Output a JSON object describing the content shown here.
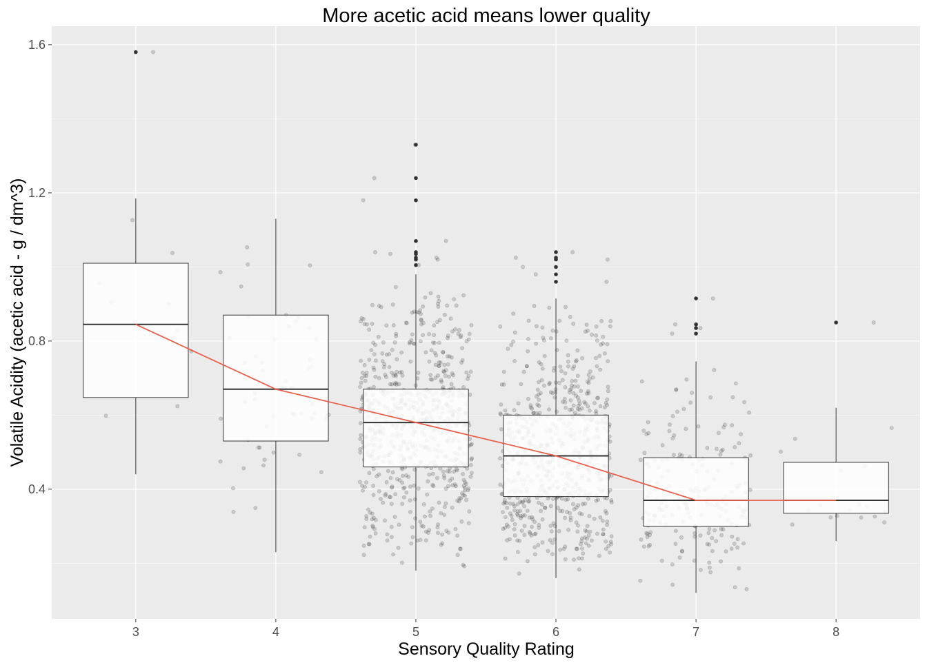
{
  "chart_data": {
    "type": "boxplot",
    "title": "More acetic acid means lower quality",
    "xlabel": "Sensory Quality Rating",
    "ylabel": "Volatile Acidity (acetic acid - g / dm^3)",
    "categories": [
      "3",
      "4",
      "5",
      "6",
      "7",
      "8"
    ],
    "ylim": [
      0.05,
      1.65
    ],
    "yticks": [
      0.4,
      0.8,
      1.2,
      1.6
    ],
    "ytick_labels": [
      "0.4",
      "0.8",
      "1.2",
      "1.6"
    ],
    "grid": true,
    "boxes": [
      {
        "category": "3",
        "min": 0.44,
        "q1": 0.6475,
        "median": 0.845,
        "q3": 1.01,
        "max": 1.185,
        "outliers": [
          1.58
        ]
      },
      {
        "category": "4",
        "min": 0.23,
        "q1": 0.53,
        "median": 0.67,
        "q3": 0.87,
        "max": 1.13,
        "outliers": []
      },
      {
        "category": "5",
        "min": 0.18,
        "q1": 0.46,
        "median": 0.58,
        "q3": 0.67,
        "max": 0.98,
        "outliers": [
          1.005,
          1.02,
          1.025,
          1.035,
          1.04,
          1.07,
          1.18,
          1.24,
          1.33
        ]
      },
      {
        "category": "6",
        "min": 0.16,
        "q1": 0.38,
        "median": 0.49,
        "q3": 0.6,
        "max": 0.915,
        "outliers": [
          0.96,
          0.98,
          1.0,
          1.02,
          1.025,
          1.04
        ]
      },
      {
        "category": "7",
        "min": 0.12,
        "q1": 0.3,
        "median": 0.37,
        "q3": 0.485,
        "max": 0.745,
        "outliers": [
          0.82,
          0.835,
          0.845,
          0.915
        ]
      },
      {
        "category": "8",
        "min": 0.26,
        "q1": 0.335,
        "median": 0.37,
        "q3": 0.4725,
        "max": 0.62,
        "outliers": [
          0.85
        ]
      }
    ],
    "trend_line": {
      "color": "#E8604C",
      "values": [
        0.845,
        0.67,
        0.58,
        0.49,
        0.37,
        0.37
      ]
    },
    "jitter_points": {
      "color": "#000000",
      "alpha": 0.15,
      "counts": [
        10,
        53,
        681,
        638,
        199,
        18
      ]
    },
    "colors": {
      "panel": "#EBEBEB",
      "grid": "#FFFFFF",
      "box_fill": "#FFFFFF",
      "box_stroke": "#333333",
      "outlier": "#333333",
      "text": "#000000",
      "tick_text": "#4D4D4D"
    }
  }
}
